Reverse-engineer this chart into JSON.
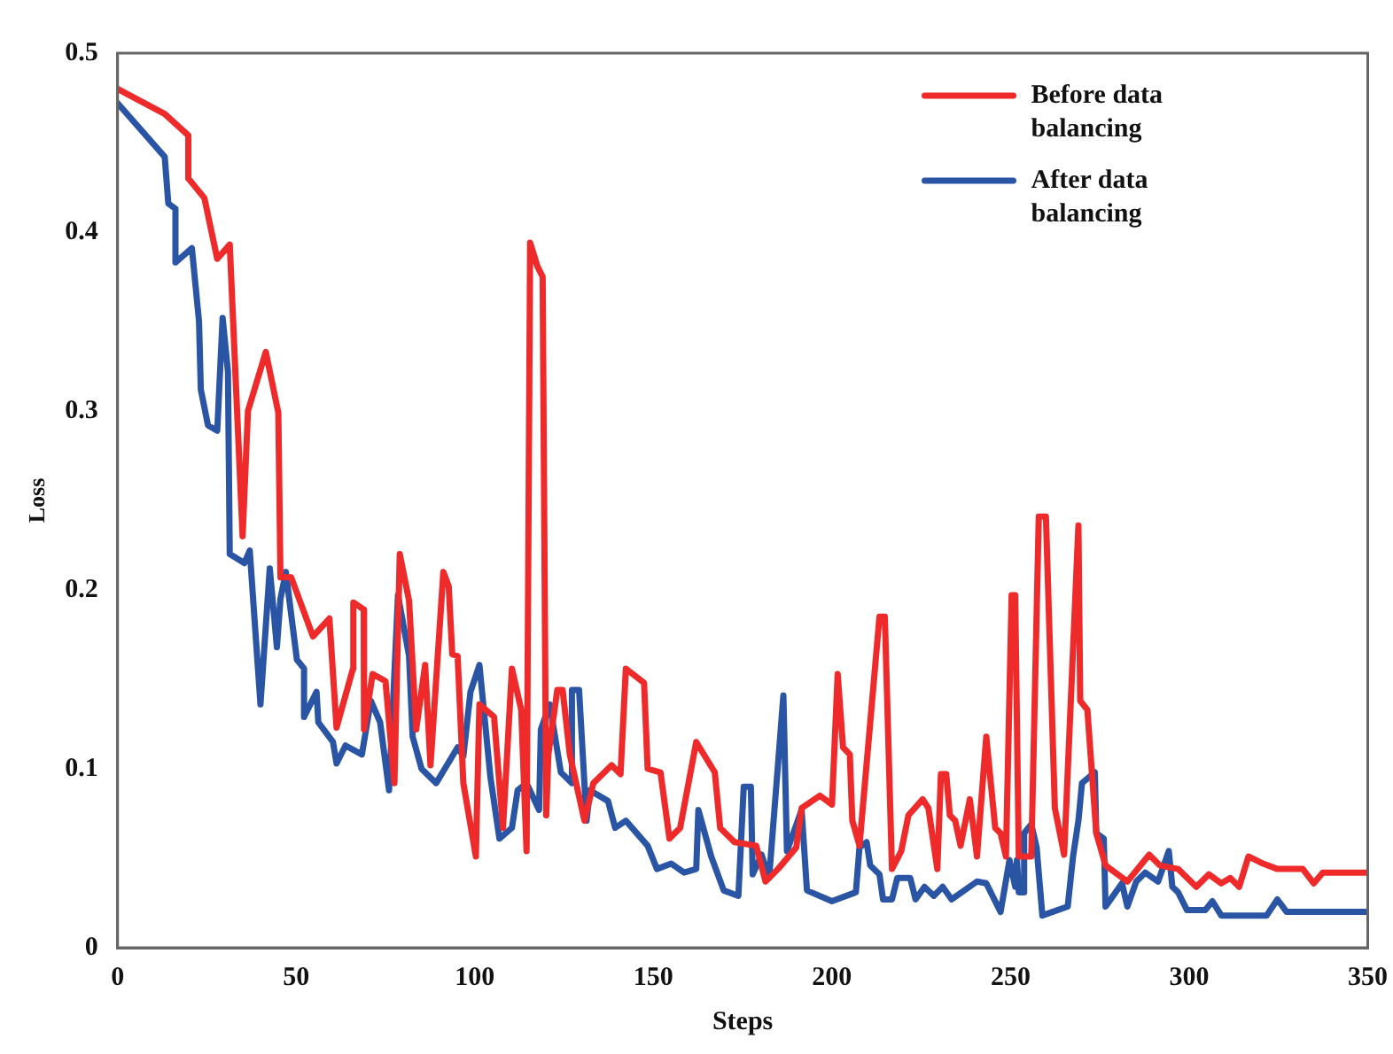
{
  "chart_data": {
    "type": "line",
    "xlabel": "Steps",
    "ylabel": "Loss",
    "xlim": [
      0,
      350
    ],
    "xticks": [
      0,
      50,
      100,
      150,
      200,
      250,
      300,
      350
    ],
    "ylim": [
      0,
      0.5
    ],
    "yticks": [
      0,
      0.1,
      0.2,
      0.3,
      0.4,
      0.5
    ],
    "grid": false,
    "legend": "top right",
    "marker": "none",
    "line_style": "solid",
    "series": [
      {
        "name": "Before data balancing",
        "color": "#ee2a2a",
        "x": [
          0,
          13.2,
          19.8,
          19.8,
          24.3,
          27.9,
          31.4,
          35,
          36.5,
          41.5,
          45,
          45.6,
          48.6,
          54.7,
          59.3,
          61.3,
          65.9,
          66,
          68.9,
          69,
          71.4,
          75,
          77.5,
          79,
          81.6,
          83.6,
          86.1,
          87.6,
          91.2,
          92.7,
          93.7,
          95.2,
          96.8,
          100.3,
          101.3,
          105.4,
          107.9,
          110.4,
          113,
          114.5,
          115.5,
          117.5,
          119,
          120,
          120.6,
          123.1,
          124.6,
          126.6,
          130.7,
          133.2,
          138.3,
          140.8,
          142.3,
          147.4,
          148.4,
          152,
          154.5,
          157.5,
          162,
          167.2,
          168.7,
          172.7,
          178.8,
          181.4,
          184.9,
          190,
          191.5,
          196.6,
          200,
          201.6,
          203.1,
          205,
          205.7,
          207.7,
          213.3,
          214.8,
          216.8,
          219.4,
          221.4,
          225.4,
          227,
          229.5,
          230.5,
          232,
          233,
          234.5,
          236,
          238.6,
          240.6,
          243.2,
          245.7,
          247.2,
          248.7,
          250.3,
          251.3,
          252.3,
          255.8,
          257.9,
          259.9,
          262.4,
          265,
          269,
          269.5,
          271.5,
          274,
          276.6,
          282.7,
          288.8,
          291.8,
          296.9,
          302,
          305.5,
          309,
          311.5,
          314,
          316.6,
          320.7,
          324.7,
          331.8,
          334.9,
          337.4,
          349.5
        ],
        "values": [
          0.48,
          0.466,
          0.454,
          0.43,
          0.419,
          0.385,
          0.393,
          0.23,
          0.3,
          0.333,
          0.299,
          0.207,
          0.207,
          0.174,
          0.184,
          0.123,
          0.156,
          0.193,
          0.189,
          0.122,
          0.153,
          0.149,
          0.092,
          0.22,
          0.194,
          0.122,
          0.158,
          0.102,
          0.21,
          0.202,
          0.164,
          0.163,
          0.092,
          0.051,
          0.136,
          0.129,
          0.067,
          0.156,
          0.133,
          0.054,
          0.394,
          0.381,
          0.375,
          0.074,
          0.108,
          0.144,
          0.144,
          0.108,
          0.071,
          0.092,
          0.102,
          0.097,
          0.156,
          0.148,
          0.1,
          0.098,
          0.061,
          0.067,
          0.115,
          0.098,
          0.067,
          0.059,
          0.057,
          0.037,
          0.044,
          0.056,
          0.078,
          0.085,
          0.08,
          0.153,
          0.112,
          0.108,
          0.071,
          0.057,
          0.185,
          0.185,
          0.044,
          0.054,
          0.074,
          0.083,
          0.078,
          0.044,
          0.097,
          0.097,
          0.074,
          0.071,
          0.057,
          0.083,
          0.051,
          0.118,
          0.067,
          0.064,
          0.051,
          0.197,
          0.197,
          0.051,
          0.051,
          0.241,
          0.241,
          0.078,
          0.052,
          0.236,
          0.138,
          0.133,
          0.064,
          0.046,
          0.037,
          0.052,
          0.046,
          0.044,
          0.034,
          0.041,
          0.036,
          0.039,
          0.034,
          0.051,
          0.047,
          0.044,
          0.044,
          0.036,
          0.042,
          0.042
        ]
      },
      {
        "name": "After data balancing",
        "color": "#2a55a5",
        "x": [
          0,
          13.2,
          14.2,
          16.2,
          16.2,
          20.8,
          22.8,
          23.3,
          25.3,
          27.9,
          29.4,
          30.9,
          31.4,
          35.5,
          37,
          40,
          42.6,
          44.6,
          45.6,
          47.1,
          50.2,
          52.2,
          52.2,
          55.7,
          56.2,
          60.3,
          61.3,
          63.8,
          68.4,
          70.9,
          73.5,
          76,
          78.5,
          81.6,
          82.6,
          85.1,
          89.2,
          95.2,
          96.8,
          98.8,
          101.3,
          104.4,
          106.9,
          110.4,
          112,
          114.5,
          118,
          118.5,
          121,
          124.1,
          127.2,
          127.2,
          129.2,
          131.3,
          132.2,
          137.3,
          139.3,
          142.3,
          148.4,
          151,
          155,
          158.6,
          162,
          162.6,
          166.2,
          169.7,
          173.8,
          175.3,
          177.3,
          177.8,
          180.3,
          182.4,
          186.4,
          187.4,
          191.5,
          193,
          200,
          206.7,
          207.7,
          209.7,
          210.7,
          213.3,
          214.3,
          216.8,
          218.3,
          221.9,
          223.4,
          225.9,
          228.5,
          231,
          233.5,
          240.6,
          243.2,
          247.2,
          249.7,
          251.3,
          251.8,
          252.3,
          253.8,
          253.8,
          255.8,
          257.3,
          258.9,
          266,
          267.5,
          269,
          270,
          273.6,
          274,
          276.1,
          276.6,
          281.2,
          282.7,
          285.2,
          287.7,
          291.3,
          294.3,
          295.3,
          296.9,
          299.4,
          304.5,
          306.5,
          309,
          321.7,
          324.7,
          327.3,
          349.5
        ],
        "values": [
          0.472,
          0.442,
          0.416,
          0.413,
          0.383,
          0.391,
          0.35,
          0.312,
          0.292,
          0.289,
          0.352,
          0.322,
          0.22,
          0.215,
          0.222,
          0.136,
          0.212,
          0.168,
          0.195,
          0.21,
          0.161,
          0.156,
          0.129,
          0.143,
          0.126,
          0.115,
          0.103,
          0.113,
          0.108,
          0.138,
          0.126,
          0.088,
          0.197,
          0.163,
          0.118,
          0.1,
          0.092,
          0.112,
          0.107,
          0.143,
          0.158,
          0.095,
          0.061,
          0.067,
          0.088,
          0.092,
          0.077,
          0.122,
          0.136,
          0.098,
          0.092,
          0.144,
          0.144,
          0.071,
          0.088,
          0.082,
          0.067,
          0.071,
          0.057,
          0.044,
          0.047,
          0.042,
          0.044,
          0.077,
          0.051,
          0.032,
          0.029,
          0.09,
          0.09,
          0.041,
          0.052,
          0.039,
          0.141,
          0.054,
          0.077,
          0.032,
          0.026,
          0.031,
          0.056,
          0.059,
          0.046,
          0.041,
          0.027,
          0.027,
          0.039,
          0.039,
          0.027,
          0.034,
          0.029,
          0.034,
          0.027,
          0.037,
          0.036,
          0.02,
          0.049,
          0.034,
          0.049,
          0.031,
          0.031,
          0.064,
          0.069,
          0.056,
          0.018,
          0.023,
          0.051,
          0.071,
          0.092,
          0.098,
          0.064,
          0.061,
          0.023,
          0.036,
          0.023,
          0.037,
          0.042,
          0.037,
          0.054,
          0.034,
          0.031,
          0.021,
          0.021,
          0.026,
          0.018,
          0.018,
          0.027,
          0.02,
          0.02
        ]
      }
    ]
  }
}
